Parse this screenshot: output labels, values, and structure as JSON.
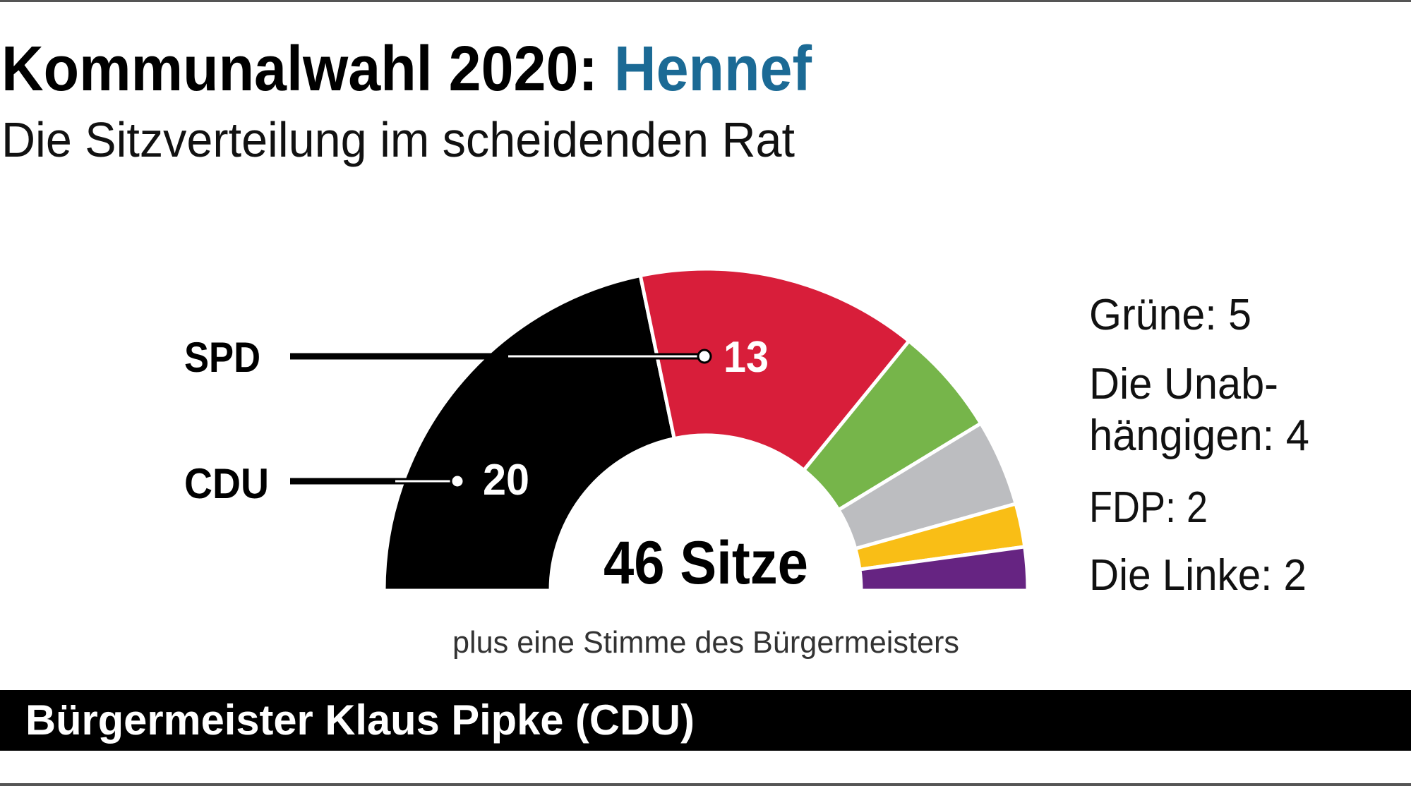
{
  "header": {
    "title_prefix": "Kommunalwahl 2020:",
    "title_place": "Hennef",
    "subtitle": "Die Sitzverteilung im scheidenden Rat"
  },
  "chart_data": {
    "type": "pie",
    "subtype": "half-donut (parliament)",
    "title": "Kommunalwahl 2020: Hennef",
    "subtitle": "Die Sitzverteilung im scheidenden Rat",
    "total_label": "46 Sitze",
    "total": 46,
    "note": "plus eine Stimme des Bürgermeisters",
    "series": [
      {
        "name": "CDU",
        "value": 20,
        "color": "#000000"
      },
      {
        "name": "SPD",
        "value": 13,
        "color": "#d81e3a"
      },
      {
        "name": "Grüne",
        "value": 5,
        "color": "#76b54a"
      },
      {
        "name": "Die Unabhängigen",
        "value": 4,
        "color": "#bcbdc0"
      },
      {
        "name": "FDP",
        "value": 2,
        "color": "#f9be16"
      },
      {
        "name": "Die Linke",
        "value": 2,
        "color": "#662482"
      }
    ],
    "callouts": {
      "spd_label": "SPD",
      "spd_value": "13",
      "cdu_label": "CDU",
      "cdu_value": "20"
    },
    "legend": [
      "Grüne: 5",
      "Die Unab-",
      "hängigen: 4",
      "FDP: 2",
      "Die Linke: 2"
    ]
  },
  "footer": {
    "mayor": "Bürgermeister Klaus Pipke (CDU)"
  },
  "colors": {
    "accent": "#1b6a95",
    "footer_bg": "#000000"
  }
}
